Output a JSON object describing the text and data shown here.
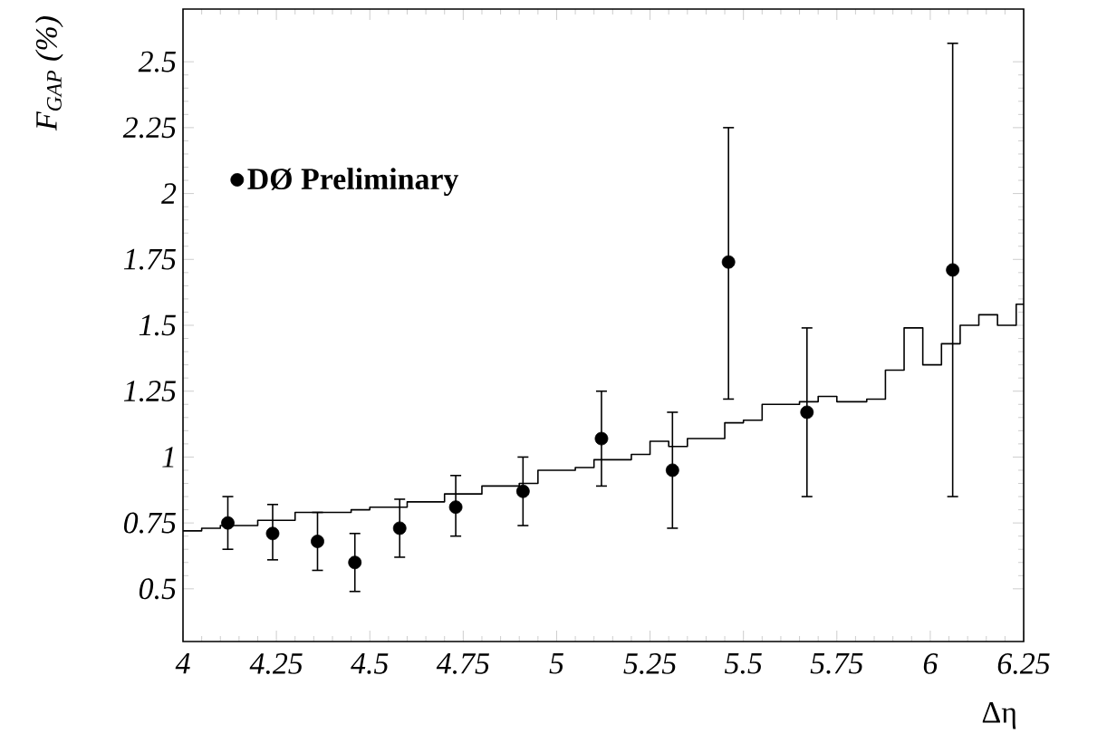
{
  "chart_data": {
    "type": "scatter",
    "xlabel": "Δη",
    "ylabel": "F$_{GAP}$ (%)",
    "xlim": [
      4,
      6.25
    ],
    "xticks": [
      4,
      4.25,
      4.5,
      4.75,
      5,
      5.25,
      5.5,
      5.75,
      6,
      6.25
    ],
    "ylim": [
      0.3,
      2.7
    ],
    "yticks": [
      0.5,
      0.75,
      1,
      1.25,
      1.5,
      1.75,
      2,
      2.25,
      2.5
    ],
    "grid": false,
    "legend": "top left",
    "marker": "circle",
    "series": [
      {
        "name": "DØ Preliminary",
        "color": "#000000",
        "x": [
          4.12,
          4.24,
          4.36,
          4.46,
          4.58,
          4.73,
          4.91,
          5.12,
          5.31,
          5.46,
          5.67,
          6.06
        ],
        "values": [
          0.75,
          0.71,
          0.68,
          0.6,
          0.73,
          0.81,
          0.87,
          1.07,
          0.95,
          1.74,
          1.17,
          1.71
        ],
        "errors": [
          [
            0.65,
            0.85
          ],
          [
            0.61,
            0.82
          ],
          [
            0.57,
            0.79
          ],
          [
            0.49,
            0.71
          ],
          [
            0.62,
            0.84
          ],
          [
            0.7,
            0.93
          ],
          [
            0.74,
            1.0
          ],
          [
            0.89,
            1.25
          ],
          [
            0.73,
            1.17
          ],
          [
            1.22,
            2.25
          ],
          [
            0.85,
            1.49
          ],
          [
            0.85,
            2.57
          ]
        ]
      },
      {
        "type": "step",
        "marker": "none",
        "color": "#000000",
        "x": [
          4.0,
          4.05,
          4.1,
          4.2,
          4.3,
          4.45,
          4.5,
          4.6,
          4.7,
          4.8,
          4.9,
          4.95,
          5.05,
          5.1,
          5.2,
          5.25,
          5.3,
          5.35,
          5.45,
          5.5,
          5.55,
          5.65,
          5.7,
          5.75,
          5.83,
          5.88,
          5.93,
          5.98,
          6.03,
          6.08,
          6.13,
          6.18,
          6.23,
          6.25
        ],
        "values": [
          0.72,
          0.73,
          0.74,
          0.76,
          0.79,
          0.8,
          0.81,
          0.83,
          0.86,
          0.89,
          0.9,
          0.95,
          0.96,
          0.99,
          1.01,
          1.06,
          1.04,
          1.07,
          1.13,
          1.14,
          1.2,
          1.21,
          1.23,
          1.21,
          1.22,
          1.33,
          1.49,
          1.35,
          1.43,
          1.5,
          1.54,
          1.5,
          1.58,
          1.58
        ]
      }
    ]
  }
}
